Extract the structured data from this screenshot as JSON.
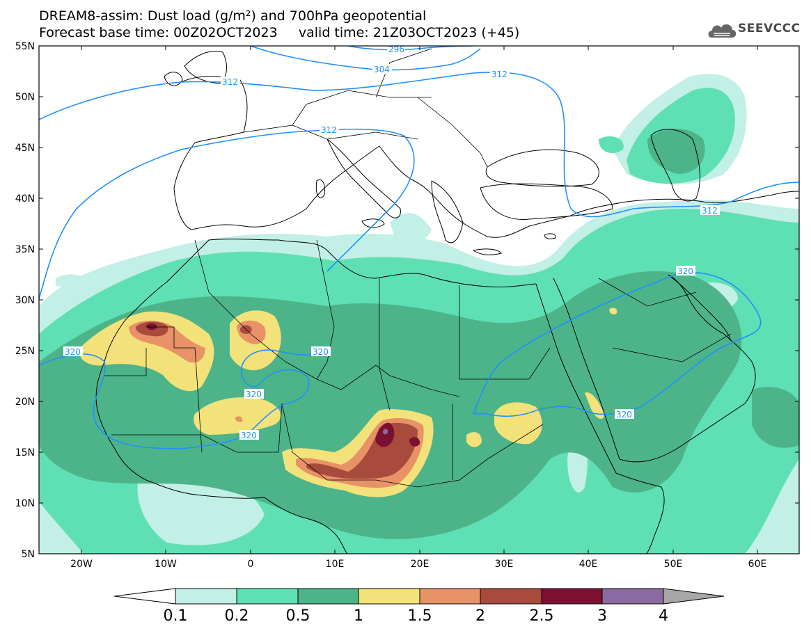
{
  "title": {
    "line1": "DREAM8-assim: Dust load (g/m²) and 700hPa geopotential",
    "line2_base": "Forecast base time: 00Z02OCT2023",
    "line2_valid": "valid time: 21Z03OCT2023 (+45)"
  },
  "logo": {
    "text": "SEEVCCC",
    "icon": "cloud-icon"
  },
  "axes": {
    "lat_labels": [
      "55N",
      "50N",
      "45N",
      "40N",
      "35N",
      "30N",
      "25N",
      "20N",
      "15N",
      "10N",
      "5N"
    ],
    "lon_labels": [
      "20W",
      "10W",
      "0",
      "10E",
      "20E",
      "30E",
      "40E",
      "50E",
      "60E"
    ]
  },
  "contour_labels": {
    "c296": "296",
    "c304": "304",
    "c312a": "312",
    "c312b": "312",
    "c312c": "312",
    "c312d": "312",
    "c320a": "320",
    "c320b": "320",
    "c320c": "320",
    "c320d": "320",
    "c320e": "320",
    "c320f": "320"
  },
  "colorbar": {
    "labels": [
      "0.1",
      "0.2",
      "0.5",
      "1",
      "1.5",
      "2",
      "2.5",
      "3",
      "4"
    ],
    "colors": [
      "#c2efe6",
      "#5fdfb4",
      "#4db48a",
      "#f3e27a",
      "#e89267",
      "#a84a3c",
      "#7c1030",
      "#8a6aa0",
      "#a7a7a7"
    ]
  },
  "map_colors": {
    "level1": "#c2efe6",
    "level2": "#5fdfb4",
    "level3": "#4db48a",
    "level4": "#f3e27a",
    "level5": "#e89267",
    "level6": "#a84a3c",
    "level7": "#7c1030",
    "level8": "#8a6aa0",
    "contour": "#1e90ff",
    "coast": "#000000"
  }
}
